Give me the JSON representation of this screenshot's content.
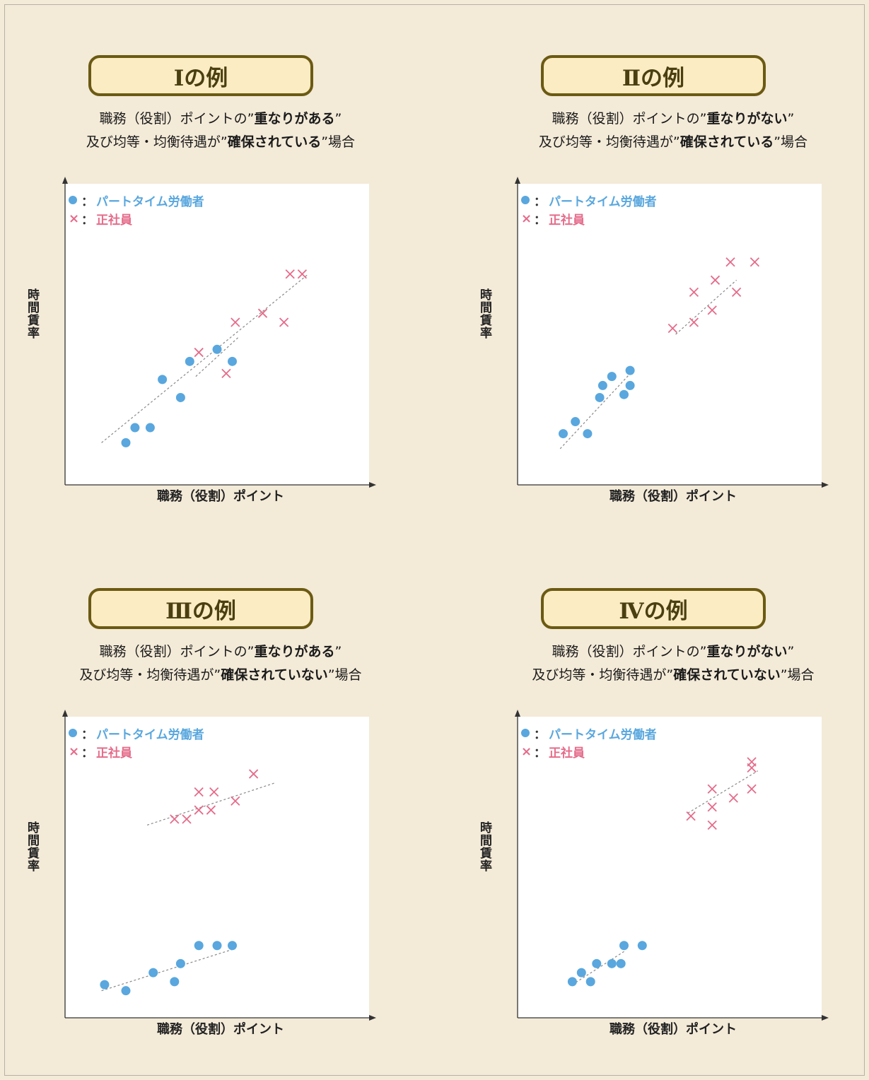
{
  "colors": {
    "part_time": "#59a7de",
    "regular": "#e56c8a",
    "trend": "#888888",
    "title_border": "#6b5a12",
    "title_fill": "#fcecc4"
  },
  "legend": {
    "marker_dot": "●",
    "marker_cross": "×",
    "colon": "：",
    "part_time": "パートタイム労働者",
    "regular": "正社員"
  },
  "axes": {
    "x_label": "職務（役割）ポイント",
    "y_label": "時間賃率"
  },
  "common": {
    "sub1_prefix": "職務（役割）ポイントの”",
    "sub1_suffix": "”",
    "sub2_prefix": "及び均等・均衡待遇が”",
    "sub2_suffix": "”場合"
  },
  "panels": [
    {
      "title": "Ⅰの例",
      "sub1_bold": "重なりがある",
      "sub2_bold": "確保されている"
    },
    {
      "title": "Ⅱの例",
      "sub1_bold": "重なりがない",
      "sub2_bold": "確保されている"
    },
    {
      "title": "Ⅲの例",
      "sub1_bold": "重なりがある",
      "sub2_bold": "確保されていない"
    },
    {
      "title": "Ⅳの例",
      "sub1_bold": "重なりがない",
      "sub2_bold": "確保されていない"
    }
  ],
  "chart_data": [
    {
      "type": "scatter",
      "title": "Ⅰの例",
      "xlabel": "職務（役割）ポイント",
      "ylabel": "時間賃率",
      "xlim": [
        0,
        100
      ],
      "ylim": [
        0,
        100
      ],
      "grid": false,
      "legend_position": "top-left",
      "series": [
        {
          "name": "パートタイム労働者",
          "marker": "dot",
          "points": [
            [
              20,
              14
            ],
            [
              23,
              19
            ],
            [
              28,
              19
            ],
            [
              32,
              35
            ],
            [
              38,
              29
            ],
            [
              41,
              41
            ],
            [
              50,
              45
            ],
            [
              55,
              41
            ]
          ]
        },
        {
          "name": "正社員",
          "marker": "cross",
          "points": [
            [
              44,
              44
            ],
            [
              53,
              37
            ],
            [
              56,
              54
            ],
            [
              65,
              57
            ],
            [
              72,
              54
            ],
            [
              74,
              70
            ],
            [
              78,
              70
            ]
          ]
        }
      ],
      "trendlines": [
        [
          12,
          14,
          80,
          70
        ],
        [
          43,
          36,
          57,
          49
        ]
      ]
    },
    {
      "type": "scatter",
      "title": "Ⅱの例",
      "xlabel": "職務（役割）ポイント",
      "ylabel": "時間賃率",
      "xlim": [
        0,
        100
      ],
      "ylim": [
        0,
        100
      ],
      "grid": false,
      "legend_position": "top-left",
      "series": [
        {
          "name": "パートタイム労働者",
          "marker": "dot",
          "points": [
            [
              15,
              17
            ],
            [
              19,
              21
            ],
            [
              23,
              17
            ],
            [
              27,
              29
            ],
            [
              28,
              33
            ],
            [
              31,
              36
            ],
            [
              35,
              30
            ],
            [
              37,
              33
            ],
            [
              37,
              38
            ]
          ]
        },
        {
          "name": "正社員",
          "marker": "cross",
          "points": [
            [
              51,
              52
            ],
            [
              58,
              54
            ],
            [
              58,
              64
            ],
            [
              64,
              58
            ],
            [
              65,
              68
            ],
            [
              70,
              74
            ],
            [
              72,
              64
            ],
            [
              78,
              74
            ]
          ]
        }
      ],
      "trendlines": [
        [
          14,
          12,
          38,
          38
        ],
        [
          52,
          50,
          72,
          68
        ]
      ]
    },
    {
      "type": "scatter",
      "title": "Ⅲの例",
      "xlabel": "職務（役割）ポイント",
      "ylabel": "時間賃率",
      "xlim": [
        0,
        100
      ],
      "ylim": [
        0,
        100
      ],
      "grid": false,
      "legend_position": "top-left",
      "series": [
        {
          "name": "パートタイム労働者",
          "marker": "dot",
          "points": [
            [
              13,
              11
            ],
            [
              20,
              9
            ],
            [
              29,
              15
            ],
            [
              36,
              12
            ],
            [
              38,
              18
            ],
            [
              44,
              24
            ],
            [
              50,
              24
            ],
            [
              55,
              24
            ]
          ]
        },
        {
          "name": "正社員",
          "marker": "cross",
          "points": [
            [
              36,
              66
            ],
            [
              40,
              66
            ],
            [
              44,
              69
            ],
            [
              44,
              75
            ],
            [
              48,
              69
            ],
            [
              49,
              75
            ],
            [
              56,
              72
            ],
            [
              62,
              81
            ]
          ]
        }
      ],
      "trendlines": [
        [
          12,
          9,
          56,
          23
        ],
        [
          27,
          64,
          69,
          78
        ]
      ]
    },
    {
      "type": "scatter",
      "title": "Ⅳの例",
      "xlabel": "職務（役割）ポイント",
      "ylabel": "時間賃率",
      "xlim": [
        0,
        100
      ],
      "ylim": [
        0,
        100
      ],
      "grid": false,
      "legend_position": "top-left",
      "series": [
        {
          "name": "パートタイム労働者",
          "marker": "dot",
          "points": [
            [
              18,
              12
            ],
            [
              21,
              15
            ],
            [
              24,
              12
            ],
            [
              26,
              18
            ],
            [
              31,
              18
            ],
            [
              34,
              18
            ],
            [
              35,
              24
            ],
            [
              41,
              24
            ]
          ]
        },
        {
          "name": "正社員",
          "marker": "cross",
          "points": [
            [
              57,
              67
            ],
            [
              64,
              64
            ],
            [
              64,
              70
            ],
            [
              64,
              76
            ],
            [
              71,
              73
            ],
            [
              77,
              76
            ],
            [
              77,
              83
            ],
            [
              77,
              85
            ]
          ]
        }
      ],
      "trendlines": [
        [
          18,
          11,
          35,
          22
        ],
        [
          56,
          68,
          79,
          82
        ]
      ]
    }
  ]
}
